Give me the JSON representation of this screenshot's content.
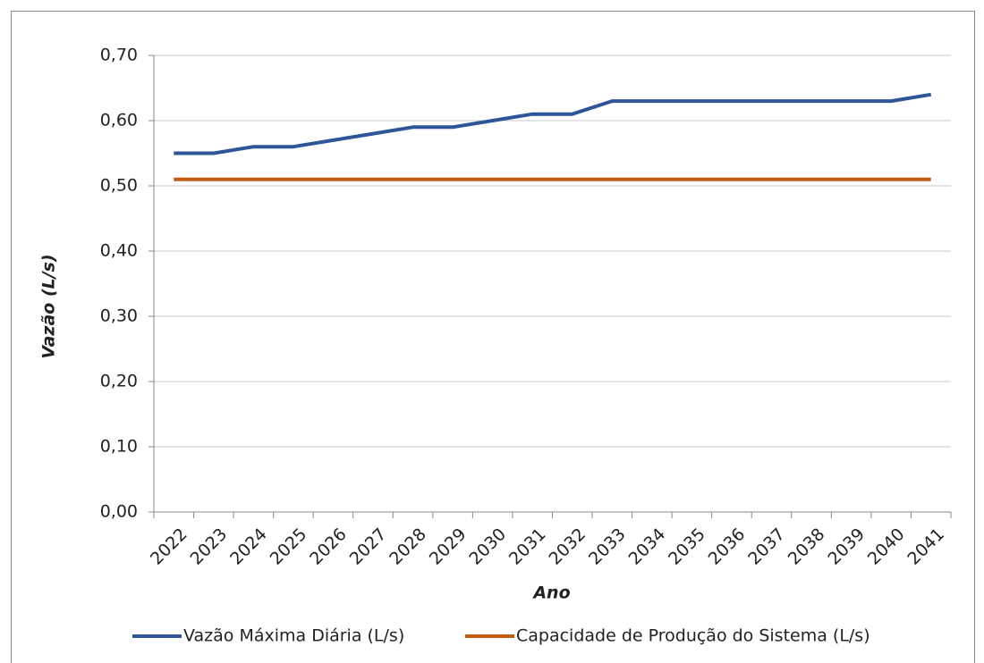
{
  "chart_data": {
    "type": "line",
    "x_label": "Ano",
    "y_label": "Vazão (L/s)",
    "categories": [
      "2022",
      "2023",
      "2024",
      "2025",
      "2026",
      "2027",
      "2028",
      "2029",
      "2030",
      "2031",
      "2032",
      "2033",
      "2034",
      "2035",
      "2036",
      "2037",
      "2038",
      "2039",
      "2040",
      "2041"
    ],
    "series": [
      {
        "name": "Vazão Máxima Diária (L/s)",
        "color": "#2e5597",
        "values": [
          0.55,
          0.55,
          0.56,
          0.56,
          0.57,
          0.58,
          0.59,
          0.59,
          0.6,
          0.61,
          0.61,
          0.63,
          0.63,
          0.63,
          0.63,
          0.63,
          0.63,
          0.63,
          0.63,
          0.64
        ]
      },
      {
        "name": "Capacidade de Produção do Sistema (L/s)",
        "color": "#c55a11",
        "values": [
          0.51,
          0.51,
          0.51,
          0.51,
          0.51,
          0.51,
          0.51,
          0.51,
          0.51,
          0.51,
          0.51,
          0.51,
          0.51,
          0.51,
          0.51,
          0.51,
          0.51,
          0.51,
          0.51,
          0.51
        ]
      }
    ],
    "ylim": [
      0,
      0.7
    ],
    "yticks": [
      {
        "value": 0,
        "label": "0,00"
      },
      {
        "value": 0.1,
        "label": "0,10"
      },
      {
        "value": 0.2,
        "label": "0,20"
      },
      {
        "value": 0.3,
        "label": "0,30"
      },
      {
        "value": 0.4,
        "label": "0,40"
      },
      {
        "value": 0.5,
        "label": "0,50"
      },
      {
        "value": 0.6,
        "label": "0,60"
      },
      {
        "value": 0.7,
        "label": "0,70"
      }
    ],
    "grid": true,
    "legend": "bottom"
  }
}
